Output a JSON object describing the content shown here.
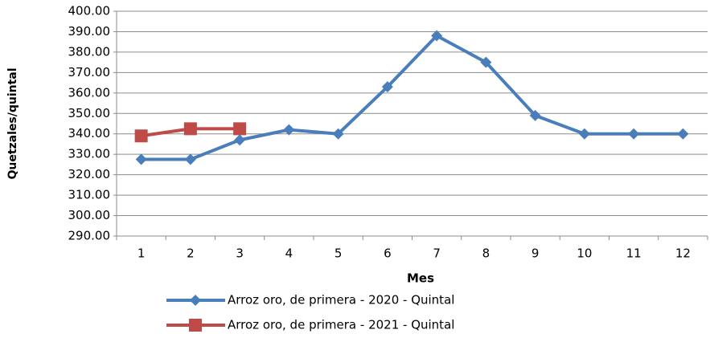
{
  "chart_data": {
    "type": "line",
    "x_label": "Mes",
    "y_label": "Quetzales/quintal",
    "categories": [
      "1",
      "2",
      "3",
      "4",
      "5",
      "6",
      "7",
      "8",
      "9",
      "10",
      "11",
      "12"
    ],
    "series": [
      {
        "name": "Arroz oro, de primera - 2020 - Quintal",
        "color": "#4a7ebb",
        "marker": "diamond",
        "values": [
          327.5,
          327.5,
          337,
          342,
          340,
          363,
          388,
          375,
          349,
          340,
          340,
          340
        ]
      },
      {
        "name": "Arroz oro, de primera - 2021 - Quintal",
        "color": "#be4b48",
        "marker": "square",
        "values": [
          339,
          342.5,
          342.5,
          null,
          null,
          null,
          null,
          null,
          null,
          null,
          null,
          null
        ]
      }
    ],
    "ylim": [
      290,
      400
    ],
    "yticks": [
      {
        "value": 290,
        "label": "290.00"
      },
      {
        "value": 300,
        "label": "300.00"
      },
      {
        "value": 310,
        "label": "310.00"
      },
      {
        "value": 320,
        "label": "320.00"
      },
      {
        "value": 330,
        "label": "330.00"
      },
      {
        "value": 340,
        "label": "340.00"
      },
      {
        "value": 350,
        "label": "350.00"
      },
      {
        "value": 360,
        "label": "360.00"
      },
      {
        "value": 370,
        "label": "370.00"
      },
      {
        "value": 380,
        "label": "380.00"
      },
      {
        "value": 390,
        "label": "390.00"
      },
      {
        "value": 400,
        "label": "400.00"
      }
    ],
    "grid": true
  }
}
